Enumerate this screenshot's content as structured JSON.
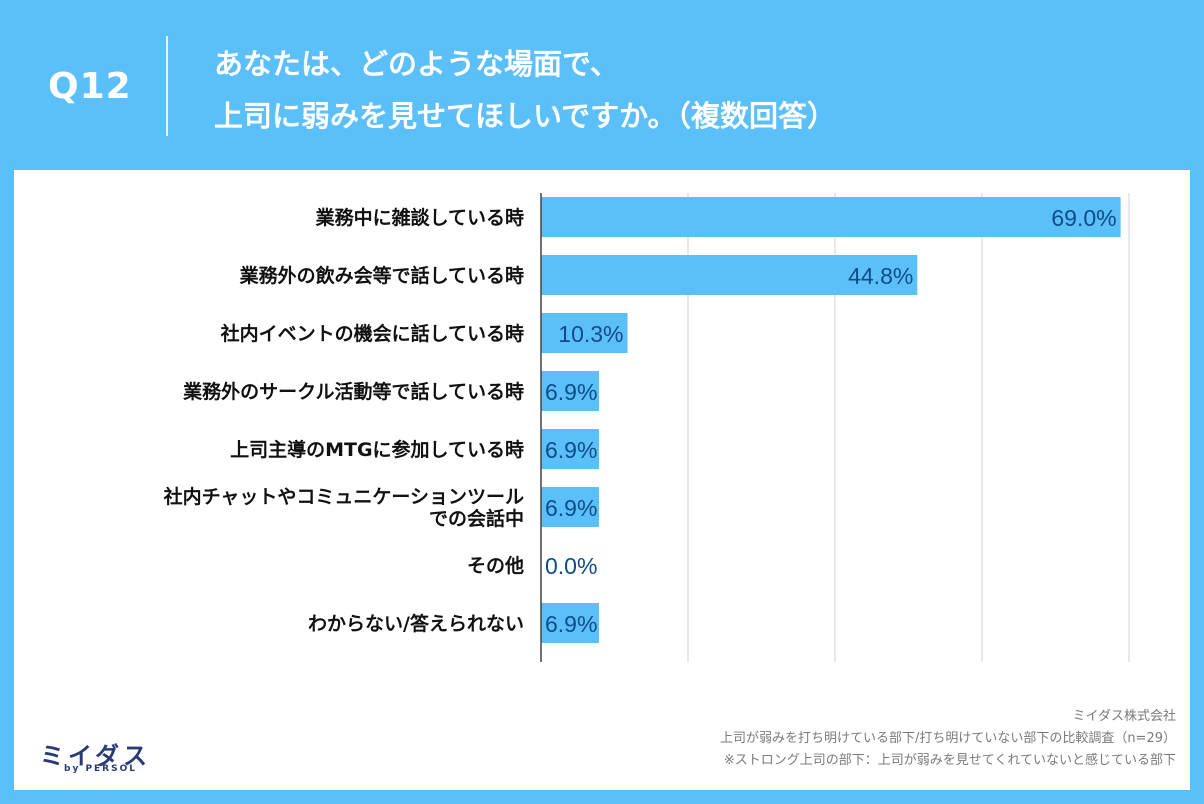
{
  "header": {
    "question_number": "Q12",
    "title_line1": "あなたは、どのような場面で、",
    "title_line2": "上司に弱みを見せてほしいですか。（複数回答）"
  },
  "colors": {
    "background": "#5bbff9",
    "bar": "#5bbff9",
    "value_label": "#0f4c8a",
    "category_label": "#111111",
    "grid": "#d0d0d0"
  },
  "chart_data": {
    "type": "bar",
    "orientation": "horizontal",
    "categories": [
      [
        "業務中に雑談している時"
      ],
      [
        "業務外の飲み会等で話している時"
      ],
      [
        "社内イベントの機会に話している時"
      ],
      [
        "業務外のサークル活動等で話している時"
      ],
      [
        "上司主導のMTGに参加している時"
      ],
      [
        "社内チャットやコミュニケーションツール",
        "での会話中"
      ],
      [
        "その他"
      ],
      [
        "わからない/答えられない"
      ]
    ],
    "values": [
      69.0,
      44.8,
      10.3,
      6.9,
      6.9,
      6.9,
      0.0,
      6.9
    ],
    "value_labels": [
      "69.0%",
      "44.8%",
      "10.3%",
      "6.9%",
      "6.9%",
      "6.9%",
      "0.0%",
      "6.9%"
    ],
    "xlim": [
      0,
      70
    ],
    "grid": true,
    "gridline_step": 17.5
  },
  "footer": {
    "company": "ミイダス株式会社",
    "survey": "上司が弱みを打ち明けている部下/打ち明けていない部下の比較調査（n=29）",
    "note": "※ストロング上司の部下：上司が弱みを見せてくれていないと感じている部下"
  },
  "logo": {
    "name": "ミイダス",
    "tagline": "by PERSOL"
  }
}
